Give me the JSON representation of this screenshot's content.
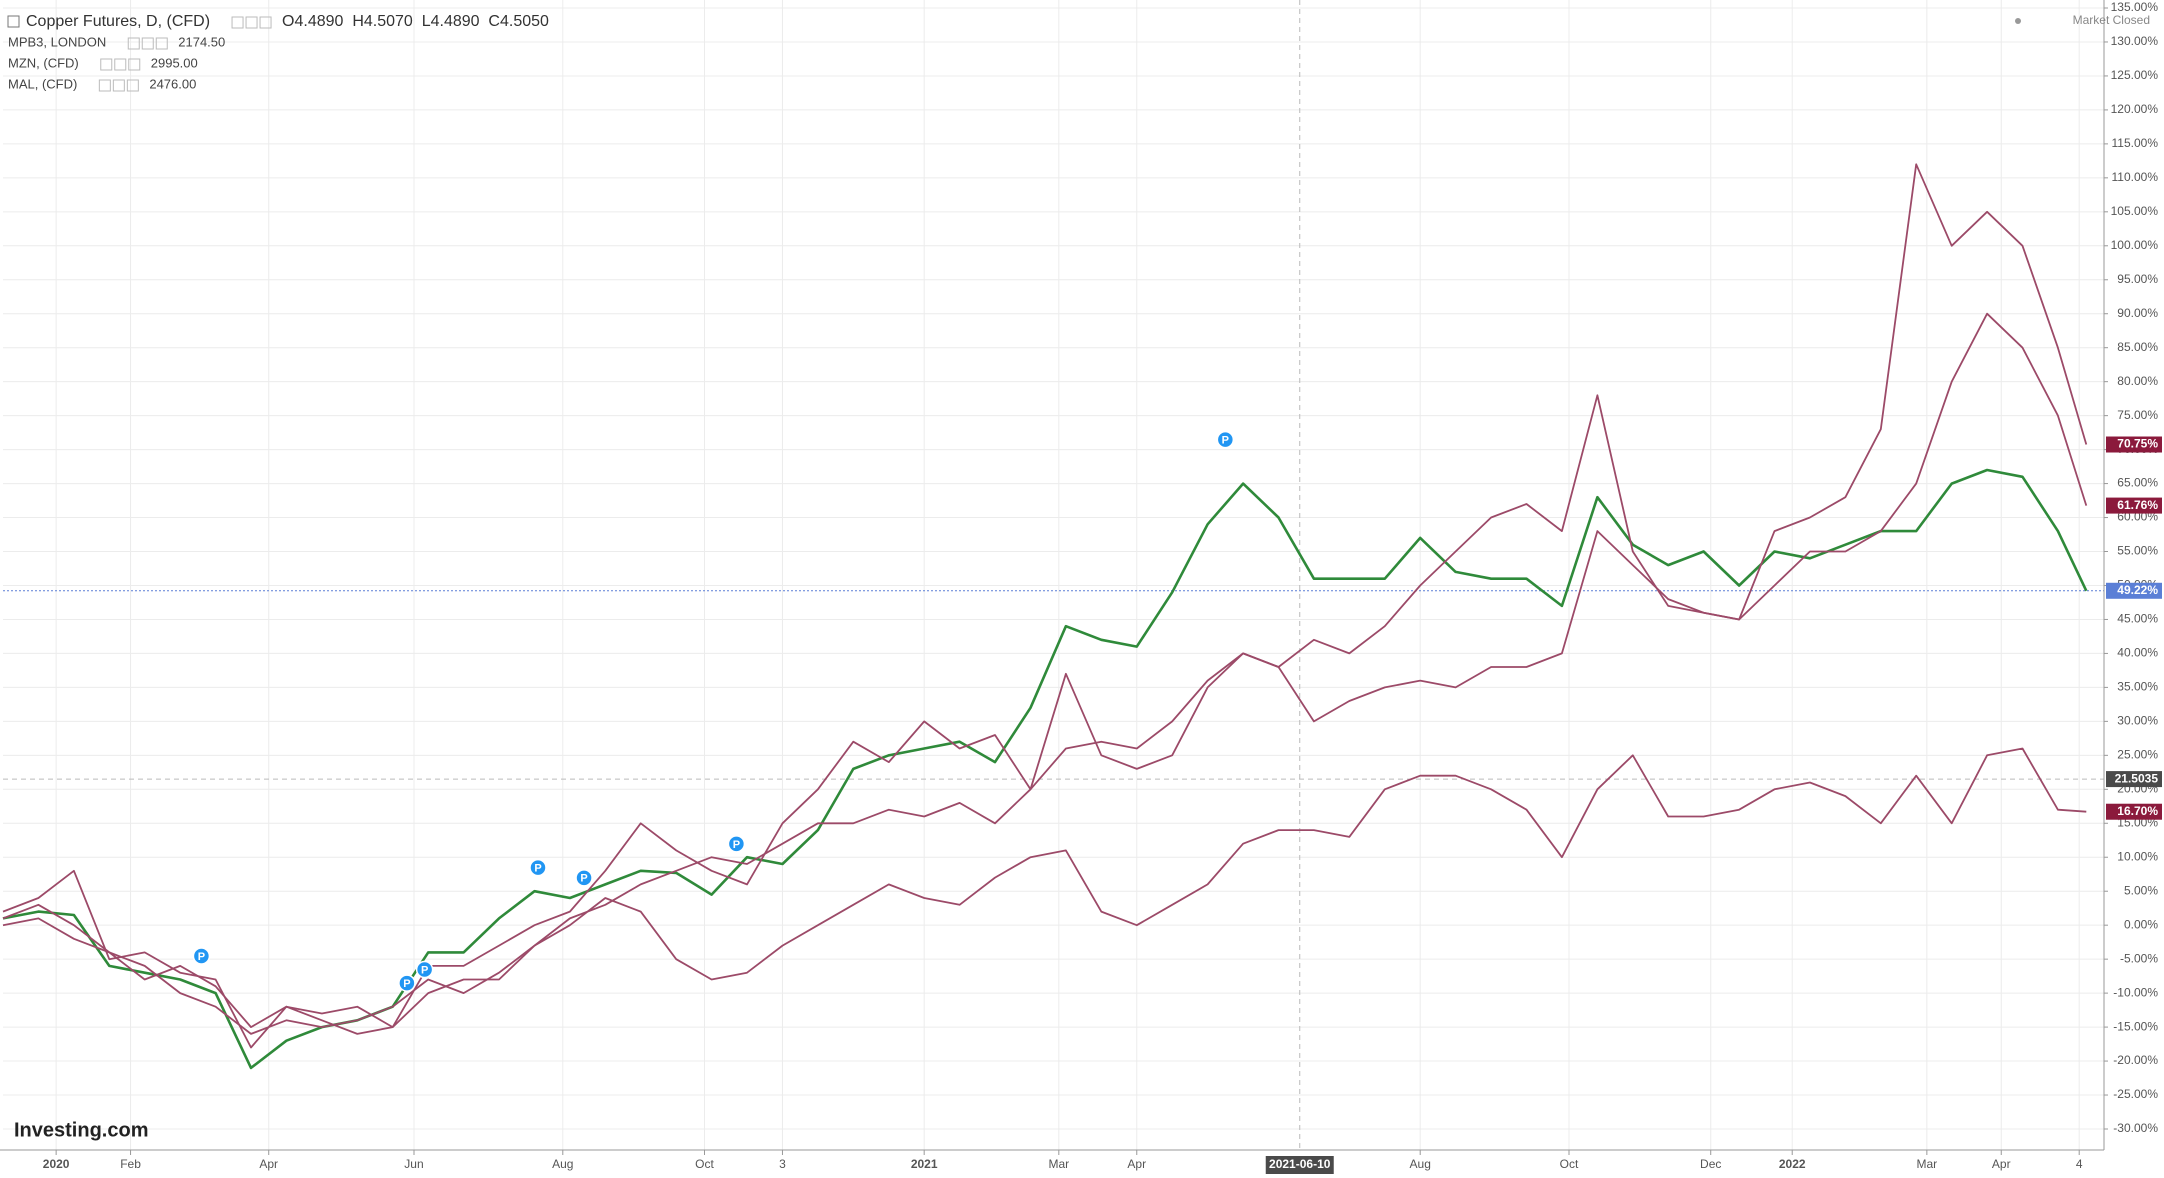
{
  "chart_data": {
    "type": "line",
    "status": "Market Closed",
    "logo": "Investing.com",
    "x": [
      0,
      10,
      20,
      30,
      40,
      50,
      60,
      70,
      80,
      90,
      100,
      110,
      120,
      130,
      140,
      150,
      160,
      170,
      180,
      190,
      200,
      210,
      220,
      230,
      240,
      250,
      260,
      270,
      280,
      290,
      300,
      310,
      320,
      330,
      340,
      350,
      360,
      370,
      380,
      390,
      400,
      410,
      420,
      430,
      440,
      450,
      460,
      470,
      480,
      490,
      500,
      510,
      520,
      530,
      540,
      550,
      560,
      570,
      580,
      588
    ],
    "xlim": [
      0,
      593
    ],
    "xticks": [
      {
        "value": 15,
        "label": "2020"
      },
      {
        "value": 36,
        "label": "Feb"
      },
      {
        "value": 75,
        "label": "Apr"
      },
      {
        "value": 116,
        "label": "Jun"
      },
      {
        "value": 158,
        "label": "Aug"
      },
      {
        "value": 198,
        "label": "Oct"
      },
      {
        "value": 220,
        "label": "3"
      },
      {
        "value": 260,
        "label": "2021"
      },
      {
        "value": 298,
        "label": "Mar"
      },
      {
        "value": 320,
        "label": "Apr"
      },
      {
        "value": 400,
        "label": "Aug"
      },
      {
        "value": 442,
        "label": "Oct"
      },
      {
        "value": 482,
        "label": "Dec"
      },
      {
        "value": 505,
        "label": "2022"
      },
      {
        "value": 543,
        "label": "Mar"
      },
      {
        "value": 564,
        "label": "Apr"
      },
      {
        "value": 586,
        "label": "4"
      }
    ],
    "ylim": [
      -30,
      135
    ],
    "yticks": [
      {
        "value": -30,
        "label": "-30.00%"
      },
      {
        "value": -25,
        "label": "-25.00%"
      },
      {
        "value": -20,
        "label": "-20.00%"
      },
      {
        "value": -15,
        "label": "-15.00%"
      },
      {
        "value": -10,
        "label": "-10.00%"
      },
      {
        "value": -5,
        "label": "-5.00%"
      },
      {
        "value": 0,
        "label": "0.00%"
      },
      {
        "value": 5,
        "label": "5.00%"
      },
      {
        "value": 10,
        "label": "10.00%"
      },
      {
        "value": 15,
        "label": "15.00%"
      },
      {
        "value": 20,
        "label": "20.00%"
      },
      {
        "value": 25,
        "label": "25.00%"
      },
      {
        "value": 30,
        "label": "30.00%"
      },
      {
        "value": 35,
        "label": "35.00%"
      },
      {
        "value": 40,
        "label": "40.00%"
      },
      {
        "value": 45,
        "label": "45.00%"
      },
      {
        "value": 50,
        "label": "50.00%"
      },
      {
        "value": 55,
        "label": "55.00%"
      },
      {
        "value": 60,
        "label": "60.00%"
      },
      {
        "value": 65,
        "label": "65.00%"
      },
      {
        "value": 70,
        "label": "70.00%"
      },
      {
        "value": 75,
        "label": "75.00%"
      },
      {
        "value": 80,
        "label": "80.00%"
      },
      {
        "value": 85,
        "label": "85.00%"
      },
      {
        "value": 90,
        "label": "90.00%"
      },
      {
        "value": 95,
        "label": "95.00%"
      },
      {
        "value": 100,
        "label": "100.00%"
      },
      {
        "value": 105,
        "label": "105.00%"
      },
      {
        "value": 110,
        "label": "110.00%"
      },
      {
        "value": 115,
        "label": "115.00%"
      },
      {
        "value": 120,
        "label": "120.00%"
      },
      {
        "value": 125,
        "label": "125.00%"
      },
      {
        "value": 130,
        "label": "130.00%"
      },
      {
        "value": 135,
        "label": "135.00%"
      }
    ],
    "grid": true,
    "crosshair": {
      "x": 366,
      "x_label": "2021-06-10",
      "y": 21.5035
    },
    "events": {
      "label": "P",
      "x": [
        56,
        114,
        119,
        151,
        164,
        207,
        345
      ],
      "y": [
        -6,
        -10,
        -8,
        7,
        5.5,
        10.5,
        70
      ]
    },
    "series": [
      {
        "name": "Copper Futures, D, (CFD)",
        "legend_value": "O4.4890  H4.5070  L4.4890  C4.5050",
        "color": "#2f8a3a",
        "badge_color": "#5b7fd6",
        "last_label": "49.22%",
        "values": [
          1,
          2,
          1.5,
          -6,
          -7,
          -8,
          -10,
          -21,
          -17,
          -15,
          -14,
          -12,
          -4,
          -4,
          1,
          5,
          4,
          6,
          8,
          7.7,
          4.5,
          10,
          9,
          14,
          23,
          25,
          26,
          27,
          24,
          32,
          44,
          42,
          41,
          49,
          59,
          65,
          60,
          51,
          51,
          51,
          57,
          52,
          51,
          51,
          47,
          63,
          56,
          53,
          55,
          50,
          55,
          54,
          56,
          58,
          58,
          65,
          67,
          66,
          58,
          49.22
        ]
      },
      {
        "name": "MPB3, LONDON",
        "legend_value": "2174.50",
        "color": "#9c4a68",
        "badge_color": "#8b1a3c",
        "last_label": "16.70%",
        "values": [
          0,
          1,
          -2,
          -4,
          -8,
          -6,
          -9,
          -15,
          -12,
          -14,
          -16,
          -15,
          -10,
          -8,
          -8,
          -3,
          0,
          4,
          2,
          -5,
          -8,
          -7,
          -3,
          0,
          3,
          6,
          4,
          3,
          7,
          10,
          11,
          2,
          0,
          3,
          6,
          12,
          14,
          14,
          13,
          20,
          22,
          22,
          20,
          17,
          10,
          20,
          25,
          16,
          16,
          17,
          20,
          21,
          19,
          15,
          22,
          15,
          25,
          26,
          17,
          16.7
        ]
      },
      {
        "name": "MZN, (CFD)",
        "legend_value": "2995.00",
        "color": "#9c4a68",
        "badge_color": "#8b1a3c",
        "last_label": "61.76%",
        "values": [
          1,
          3,
          0,
          -4,
          -6,
          -10,
          -12,
          -16,
          -14,
          -15,
          -14,
          -12,
          -8,
          -10,
          -7,
          -3,
          1,
          3,
          6,
          8,
          10,
          9,
          12,
          15,
          15,
          17,
          16,
          18,
          15,
          20,
          26,
          27,
          26,
          30,
          36,
          40,
          38,
          30,
          33,
          35,
          36,
          35,
          38,
          38,
          40,
          58,
          53,
          48,
          46,
          45,
          50,
          55,
          55,
          58,
          65,
          80,
          90,
          85,
          75,
          61.76
        ]
      },
      {
        "name": "MAL, (CFD)",
        "legend_value": "2476.00",
        "color": "#9c4a68",
        "badge_color": "#8b1a3c",
        "last_label": "70.75%",
        "values": [
          2,
          4,
          8,
          -5,
          -4,
          -7,
          -8,
          -18,
          -12,
          -13,
          -12,
          -15,
          -6,
          -6,
          -3,
          0,
          2,
          8,
          15,
          11,
          8,
          6,
          15,
          20,
          27,
          24,
          30,
          26,
          28,
          20,
          37,
          25,
          23,
          25,
          35,
          40,
          38,
          42,
          40,
          44,
          50,
          55,
          60,
          62,
          58,
          78,
          55,
          47,
          46,
          45,
          58,
          60,
          63,
          73,
          112,
          100,
          105,
          100,
          85,
          70.75
        ]
      }
    ]
  }
}
